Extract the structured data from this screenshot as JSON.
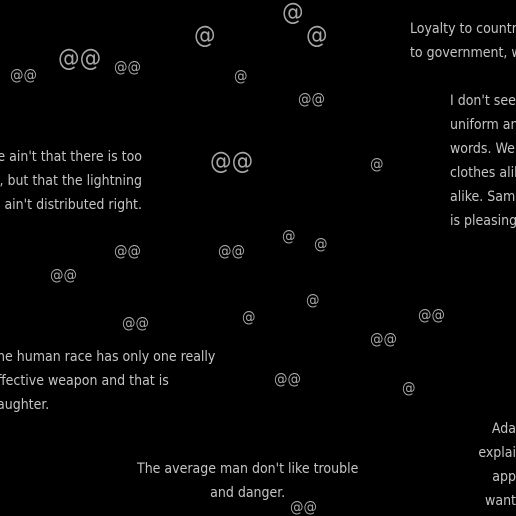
{
  "canvas": {
    "background": "#000000",
    "text_color": "#c4c4c4",
    "symbol_color": "#a6a6a6"
  },
  "quotes": {
    "loyalty": [
      "Loyalty to country",
      "to government, w"
    ],
    "uniform": [
      "I don't see",
      "uniform an",
      "words. We",
      "clothes alik",
      "alike. Same",
      "is pleasing"
    ],
    "lightning": [
      "e ain't that there is too",
      "s, but that the lightning",
      "ain't distributed right."
    ],
    "laughter": [
      "he human race has only one really",
      "ffective weapon and that is",
      "aughter."
    ],
    "adam": [
      "Ada",
      "explai",
      "app",
      "want"
    ],
    "trouble": [
      "The average man don't like trouble",
      "and danger."
    ]
  },
  "symbols": {
    "single": "@",
    "double": "@@"
  }
}
